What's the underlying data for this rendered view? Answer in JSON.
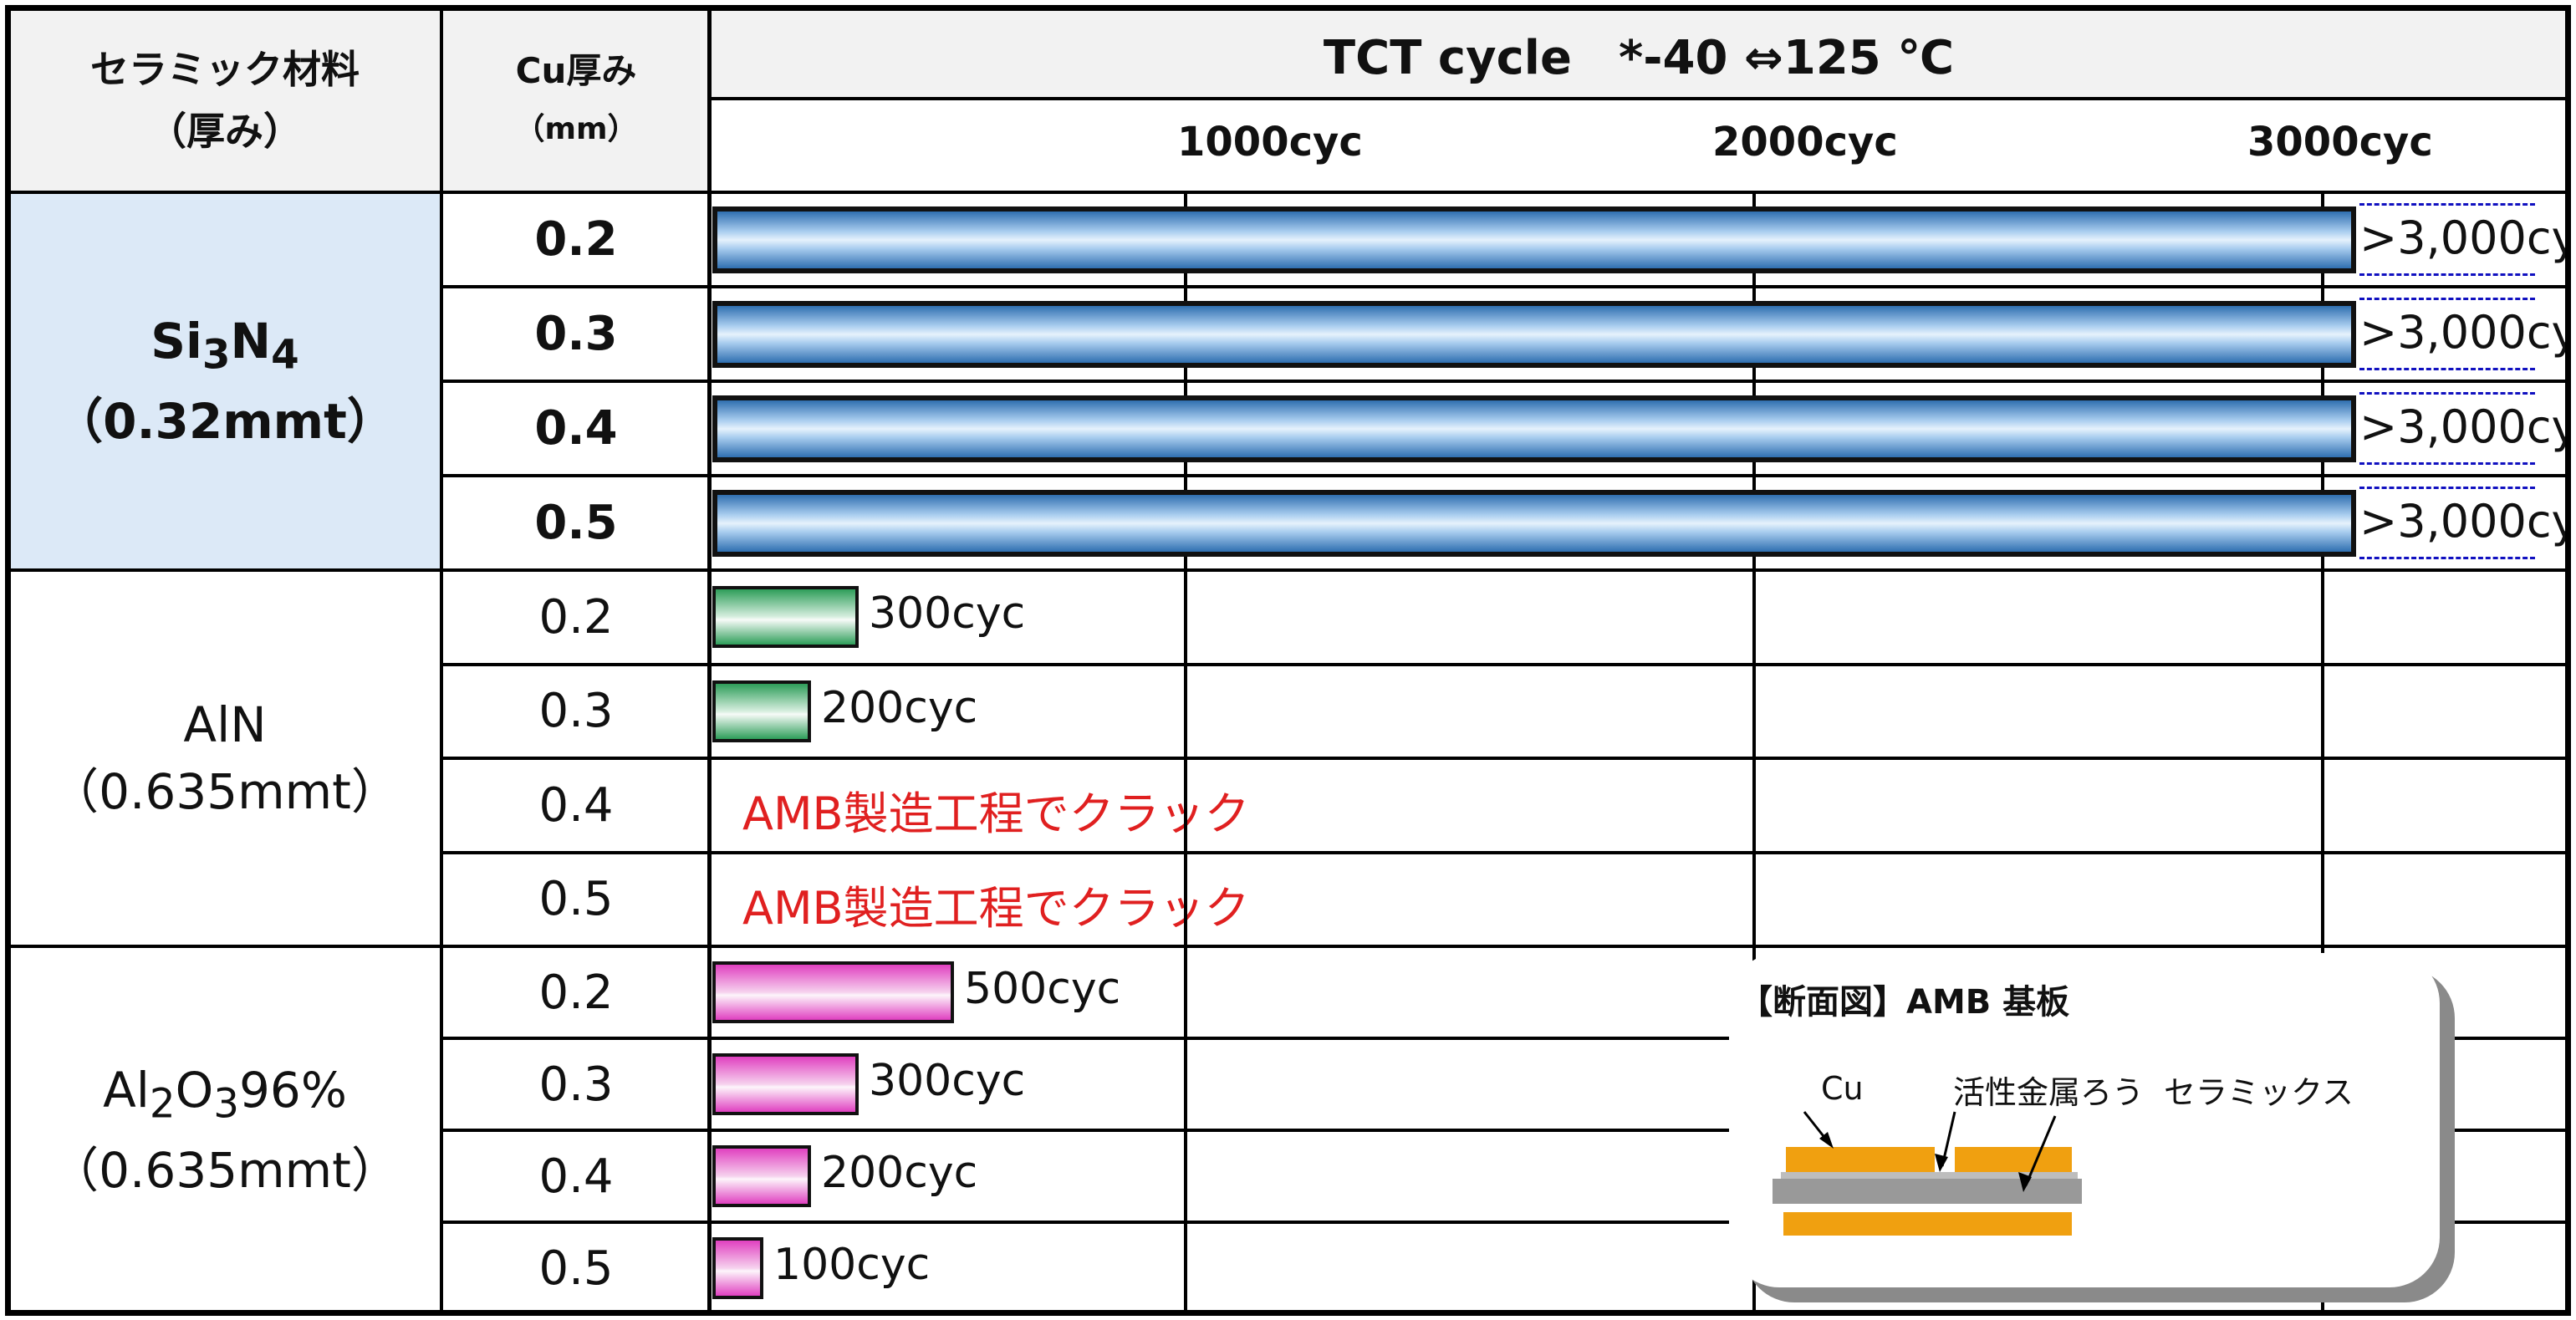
{
  "header": {
    "ceramic_label": "セラミック材料",
    "ceramic_sub": "（厚み）",
    "cu_label": "Cu厚み",
    "cu_sub": "（mm）",
    "tct_title": "TCT cycle　*-40 ⇔125 ℃",
    "ticks": [
      "1000cyc",
      "2000cyc",
      "3000cyc"
    ]
  },
  "groups": [
    {
      "name_html": "Si<sub>3</sub>N<sub>4</sub>",
      "name": "Si3N4",
      "thickness": "（0.32mmt）",
      "highlight": "#dce9f7",
      "bold": true,
      "rows": [
        {
          "cu": "0.2",
          "cycles": 3000,
          "label": ">3,000cyc",
          "exceeds": true,
          "color": "blue"
        },
        {
          "cu": "0.3",
          "cycles": 3000,
          "label": ">3,000cyc",
          "exceeds": true,
          "color": "blue"
        },
        {
          "cu": "0.4",
          "cycles": 3000,
          "label": ">3,000cyc",
          "exceeds": true,
          "color": "blue"
        },
        {
          "cu": "0.5",
          "cycles": 3000,
          "label": ">3,000cyc",
          "exceeds": true,
          "color": "blue"
        }
      ]
    },
    {
      "name_html": "AlN",
      "name": "AlN",
      "thickness": "（0.635mmt）",
      "highlight": "#ffffff",
      "bold": false,
      "rows": [
        {
          "cu": "0.2",
          "cycles": 300,
          "label": "300cyc",
          "color": "green"
        },
        {
          "cu": "0.3",
          "cycles": 200,
          "label": "200cyc",
          "color": "green"
        },
        {
          "cu": "0.4",
          "crack": "AMB製造工程でクラック"
        },
        {
          "cu": "0.5",
          "crack": "AMB製造工程でクラック"
        }
      ]
    },
    {
      "name_html": "Al<sub>2</sub>O<sub>3</sub>96%",
      "name": "Al2O396%",
      "thickness": "（0.635mmt）",
      "highlight": "#ffffff",
      "bold": false,
      "rows": [
        {
          "cu": "0.2",
          "cycles": 500,
          "label": "500cyc",
          "color": "pink"
        },
        {
          "cu": "0.3",
          "cycles": 300,
          "label": "300cyc",
          "color": "pink"
        },
        {
          "cu": "0.4",
          "cycles": 200,
          "label": "200cyc",
          "color": "pink"
        },
        {
          "cu": "0.5",
          "cycles": 100,
          "label": "100cyc",
          "color": "pink"
        }
      ]
    }
  ],
  "inset": {
    "title": "【断面図】AMB 基板",
    "cu": "Cu",
    "braze": "活性金属ろう",
    "ceramics": "セラミックス"
  },
  "colors": {
    "cu": "#f0a010",
    "ceramic": "#999999",
    "crack": "#e02020"
  }
}
